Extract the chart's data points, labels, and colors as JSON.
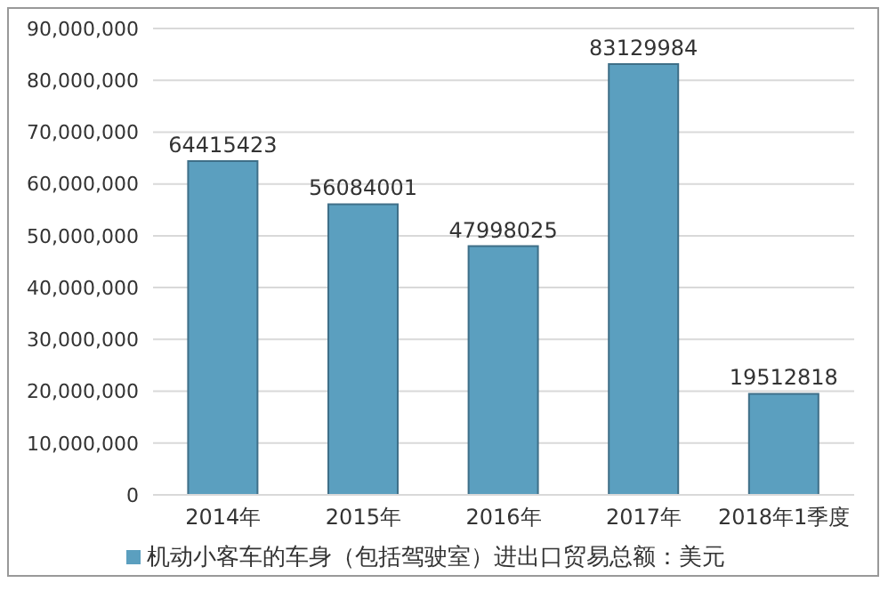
{
  "chart_data": {
    "type": "bar",
    "categories": [
      "2014年",
      "2015年",
      "2016年",
      "2017年",
      "2018年1季度"
    ],
    "series": [
      {
        "name": "机动小客车的车身（包括驾驶室）进出口贸易总额：美元",
        "color": "#5b9fbf",
        "values": [
          64415423,
          56084001,
          47998025,
          83129984,
          19512818
        ]
      }
    ],
    "ylim": [
      0,
      90000000
    ],
    "yticks": [
      0,
      {
        "value": 10000000,
        "label": "10,000,000"
      },
      {
        "value": 20000000,
        "label": "20,000,000"
      },
      {
        "value": 30000000,
        "label": "30,000,000"
      },
      {
        "value": 40000000,
        "label": "40,000,000"
      },
      {
        "value": 50000000,
        "label": "50,000,000"
      },
      {
        "value": 60000000,
        "label": "60,000,000"
      },
      {
        "value": 70000000,
        "label": "70,000,000"
      },
      {
        "value": 80000000,
        "label": "80,000,000"
      },
      {
        "value": 90000000,
        "label": "90,000,000"
      }
    ],
    "grid": "y",
    "legend": "bottom",
    "data_labels": true
  }
}
